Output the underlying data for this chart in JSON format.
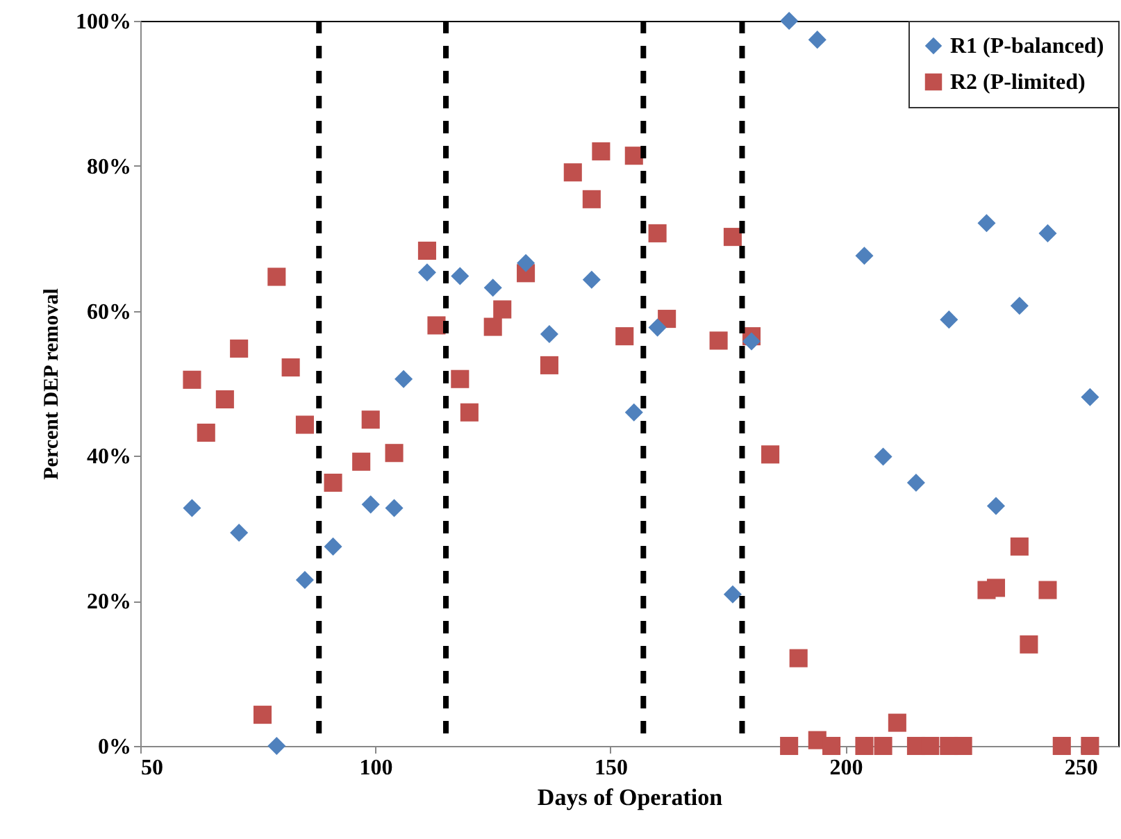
{
  "chart_data": {
    "type": "scatter",
    "xlabel": "Days of Operation",
    "ylabel": "Percent DEP removal",
    "xlim": [
      50,
      258
    ],
    "xticks": [
      50,
      100,
      150,
      200,
      250
    ],
    "ylim": [
      0,
      100
    ],
    "yticks": [
      {
        "value": 0,
        "label": "0%"
      },
      {
        "value": 20,
        "label": "20%"
      },
      {
        "value": 40,
        "label": "40%"
      },
      {
        "value": 60,
        "label": "60%"
      },
      {
        "value": 80,
        "label": "80%"
      },
      {
        "value": 100,
        "label": "100%"
      }
    ],
    "grid": false,
    "legend": "top right",
    "series": [
      {
        "name": "R1 (P-balanced)",
        "color": "#4f81bd",
        "marker": "diamond",
        "x": [
          61,
          71,
          79,
          85,
          91,
          99,
          104,
          106,
          111,
          118,
          125,
          132,
          137,
          146,
          155,
          160,
          176,
          180,
          188,
          194,
          204,
          208,
          215,
          222,
          230,
          232,
          237,
          243,
          252
        ],
        "values": [
          32.8,
          29.4,
          0,
          22.9,
          27.5,
          33.3,
          32.8,
          50.6,
          65.3,
          64.8,
          63.2,
          66.6,
          56.8,
          64.3,
          46.0,
          57.7,
          20.9,
          55.8,
          100,
          97.4,
          67.6,
          39.9,
          36.3,
          58.8,
          72.1,
          33.1,
          60.7,
          70.7,
          48.1
        ]
      },
      {
        "name": "R2 (P-limited)",
        "color": "#c0504d",
        "marker": "square",
        "x": [
          61,
          64,
          68,
          71,
          76,
          79,
          82,
          85,
          91,
          97,
          99,
          104,
          111,
          113,
          118,
          120,
          125,
          127,
          132,
          137,
          142,
          146,
          148,
          153,
          155,
          160,
          162,
          173,
          176,
          180,
          184,
          188,
          190,
          194,
          197,
          204,
          208,
          211,
          215,
          218,
          222,
          225,
          230,
          232,
          237,
          239,
          243,
          246,
          252
        ],
        "values": [
          50.5,
          43.2,
          47.8,
          54.8,
          4.3,
          64.7,
          52.2,
          44.3,
          36.3,
          39.2,
          45.0,
          40.4,
          68.3,
          58.0,
          50.6,
          46.0,
          57.8,
          60.2,
          65.2,
          52.5,
          79.1,
          75.4,
          82.0,
          56.5,
          81.4,
          70.7,
          58.9,
          55.9,
          70.2,
          56.5,
          40.2,
          0,
          12.1,
          0.8,
          0,
          0,
          0,
          3.2,
          0,
          0,
          0,
          0,
          21.5,
          21.8,
          27.5,
          14.0,
          21.5,
          0,
          0
        ]
      }
    ],
    "ref_lines": [
      {
        "axis": "x",
        "value": 88,
        "color": "#000000",
        "line_style": "dashed"
      },
      {
        "axis": "x",
        "value": 115,
        "color": "#000000",
        "line_style": "dashed"
      },
      {
        "axis": "x",
        "value": 157,
        "color": "#000000",
        "line_style": "dashed"
      },
      {
        "axis": "x",
        "value": 178,
        "color": "#000000",
        "line_style": "dashed"
      }
    ]
  }
}
